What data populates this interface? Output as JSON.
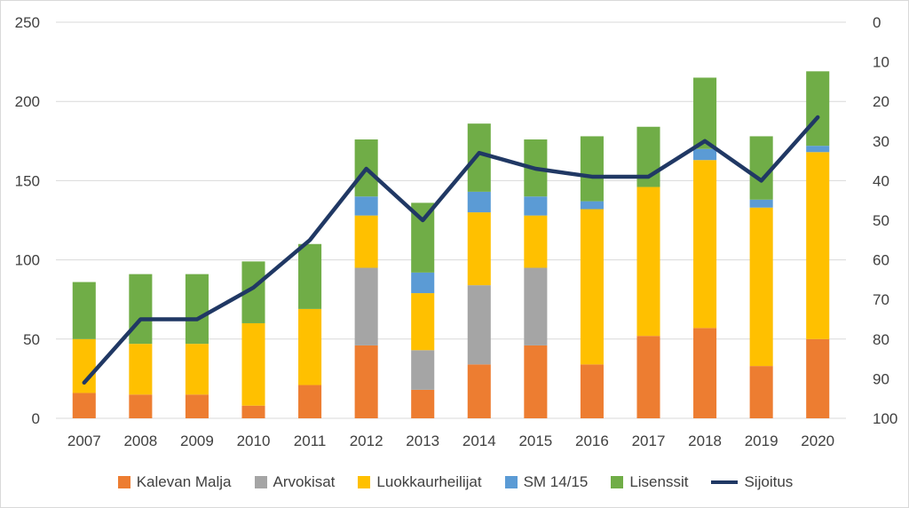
{
  "chart_data": {
    "type": "bar",
    "stacked": true,
    "categories": [
      "2007",
      "2008",
      "2009",
      "2010",
      "2011",
      "2012",
      "2013",
      "2014",
      "2015",
      "2016",
      "2017",
      "2018",
      "2019",
      "2020"
    ],
    "series": [
      {
        "name": "Kalevan Malja",
        "color": "#ed7d31",
        "values": [
          16,
          15,
          15,
          8,
          21,
          46,
          18,
          34,
          46,
          34,
          52,
          57,
          33,
          50
        ]
      },
      {
        "name": "Arvokisat",
        "color": "#a5a5a5",
        "values": [
          0,
          0,
          0,
          0,
          0,
          49,
          25,
          50,
          49,
          0,
          0,
          0,
          0,
          0
        ]
      },
      {
        "name": "Luokkaurheilijat",
        "color": "#ffc000",
        "values": [
          34,
          32,
          32,
          52,
          48,
          33,
          36,
          46,
          33,
          98,
          94,
          106,
          100,
          118
        ]
      },
      {
        "name": "SM 14/15",
        "color": "#5b9bd5",
        "values": [
          0,
          0,
          0,
          0,
          0,
          12,
          13,
          13,
          12,
          5,
          0,
          7,
          5,
          4
        ]
      },
      {
        "name": "Lisenssit",
        "color": "#70ad47",
        "values": [
          36,
          44,
          44,
          39,
          41,
          36,
          44,
          43,
          36,
          41,
          38,
          45,
          40,
          47
        ]
      }
    ],
    "line_series": {
      "name": "Sijoitus",
      "color": "#203864",
      "axis": "secondary",
      "values": [
        91,
        75,
        75,
        67,
        55,
        37,
        50,
        33,
        37,
        39,
        39,
        30,
        40,
        24
      ]
    },
    "y_axis": {
      "min": 0,
      "max": 250,
      "step": 50
    },
    "y2_axis": {
      "min": 0,
      "max": 100,
      "step": 10,
      "reversed": true
    },
    "grid": true,
    "legend_position": "bottom"
  }
}
